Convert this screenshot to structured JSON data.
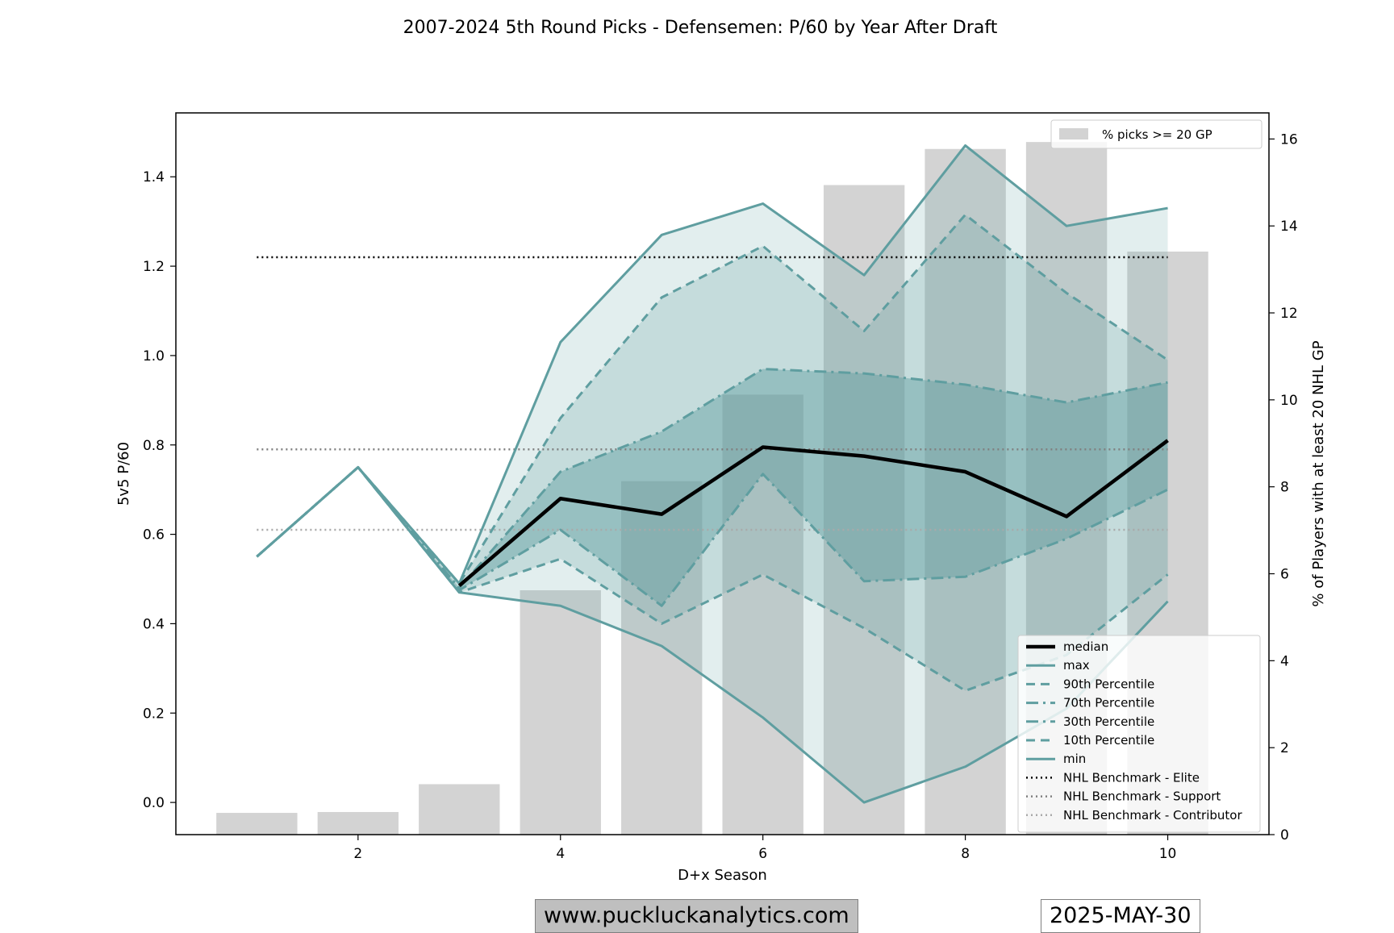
{
  "chart_data": {
    "type": "line",
    "title": "2007-2024 5th Round Picks - Defensemen: P/60 by Year After Draft",
    "xlabel": "D+x Season",
    "ylabel": "5v5 P/60",
    "ylabel_right": "% of Players with at least 20 NHL GP",
    "xlim": [
      0.2,
      11.0
    ],
    "ylim": [
      -0.072,
      1.543
    ],
    "ylim_right": [
      0,
      16.6
    ],
    "x_ticks": [
      2,
      4,
      6,
      8,
      10
    ],
    "y_ticks": [
      0.0,
      0.2,
      0.4,
      0.6,
      0.8,
      1.0,
      1.2,
      1.4
    ],
    "y_ticks_right": [
      0,
      2,
      4,
      6,
      8,
      10,
      12,
      14,
      16
    ],
    "x": [
      1,
      2,
      3,
      4,
      5,
      6,
      7,
      8,
      9,
      10
    ],
    "bars": {
      "name": "% picks >= 20 GP",
      "color": "#d3d3d3",
      "values": [
        0.5,
        0.52,
        1.16,
        5.62,
        8.13,
        10.12,
        14.94,
        15.77,
        15.93,
        13.41
      ]
    },
    "series": [
      {
        "name": "median",
        "style": "solid",
        "width": 4.5,
        "color": "#000000",
        "values": [
          null,
          null,
          0.485,
          0.68,
          0.645,
          0.795,
          0.775,
          0.74,
          0.64,
          0.81
        ]
      },
      {
        "name": "max",
        "style": "solid",
        "width": 3,
        "color": "#5f9ea0",
        "values": [
          0.55,
          0.75,
          0.49,
          1.03,
          1.27,
          1.34,
          1.18,
          1.47,
          1.29,
          1.33
        ]
      },
      {
        "name": "90th Percentile",
        "style": "dashed",
        "width": 3,
        "color": "#5f9ea0",
        "values": [
          0.55,
          0.75,
          0.49,
          0.86,
          1.13,
          1.245,
          1.055,
          1.315,
          1.14,
          0.99
        ]
      },
      {
        "name": "70th Percentile",
        "style": "dashdot",
        "width": 3,
        "color": "#5f9ea0",
        "values": [
          0.55,
          0.75,
          0.48,
          0.74,
          0.83,
          0.97,
          0.96,
          0.935,
          0.895,
          0.94
        ]
      },
      {
        "name": "30th Percentile",
        "style": "dashdot",
        "width": 3,
        "color": "#5f9ea0",
        "values": [
          0.55,
          0.75,
          0.475,
          0.61,
          0.44,
          0.735,
          0.495,
          0.505,
          0.59,
          0.7
        ]
      },
      {
        "name": "10th Percentile",
        "style": "dashed",
        "width": 3,
        "color": "#5f9ea0",
        "values": [
          0.55,
          0.75,
          0.47,
          0.545,
          0.4,
          0.51,
          0.39,
          0.25,
          0.33,
          0.51
        ]
      },
      {
        "name": "min",
        "style": "solid",
        "width": 3,
        "color": "#5f9ea0",
        "values": [
          0.55,
          0.75,
          0.47,
          0.44,
          0.35,
          0.19,
          0.0,
          0.08,
          0.21,
          0.45
        ]
      }
    ],
    "benchmarks": [
      {
        "name": "NHL Benchmark - Elite",
        "value": 1.22,
        "color": "#000000",
        "x_range": [
          1,
          10
        ]
      },
      {
        "name": "NHL Benchmark - Support",
        "value": 0.79,
        "color": "#808080",
        "x_range": [
          1,
          10
        ]
      },
      {
        "name": "NHL Benchmark - Contributor",
        "value": 0.61,
        "color": "#a9a9a9",
        "x_range": [
          1,
          10
        ]
      }
    ],
    "bands": {
      "outer_color": "#5f9ea0",
      "outer_opacity": 0.18,
      "mid_color": "#5f9ea0",
      "mid_opacity": 0.22,
      "inner_color": "#5f9ea0",
      "inner_opacity": 0.45
    },
    "legend_right_position": "upper-right",
    "legend_lines_position": "lower-right"
  },
  "footer": {
    "website": "www.puckluckanalytics.com",
    "date": "2025-MAY-30"
  }
}
